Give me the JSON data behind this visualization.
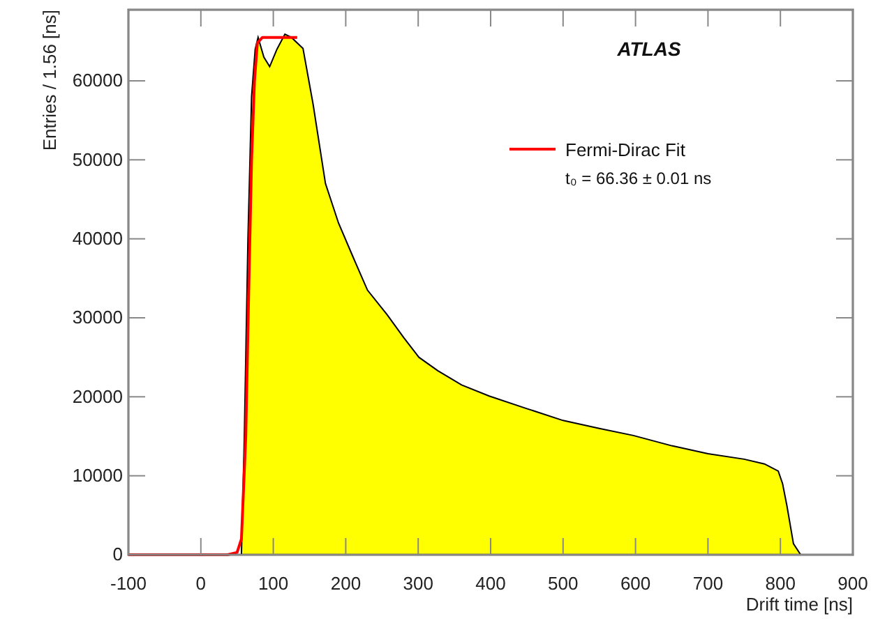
{
  "chart_data": {
    "type": "area",
    "xlabel": "Drift time [ns]",
    "ylabel": "Entries / 1.56 [ns]",
    "xlim": [
      -100,
      900
    ],
    "xticks": [
      -100,
      0,
      100,
      200,
      300,
      400,
      500,
      600,
      700,
      800,
      900
    ],
    "ylim": [
      0,
      69000
    ],
    "yticks": [
      0,
      10000,
      20000,
      30000,
      40000,
      50000,
      60000
    ],
    "legend": "top right",
    "annotations": [
      "ATLAS",
      "t₀ = 66.36 ± 0.01 ns"
    ],
    "series": [
      {
        "color": "#ffff00",
        "x": [
          50,
          56,
          60,
          65,
          70,
          75,
          79,
          87,
          95,
          105,
          116,
          125,
          141,
          155,
          172,
          190,
          211,
          230,
          257,
          280,
          301,
          327,
          360,
          398,
          450,
          500,
          550,
          597,
          650,
          700,
          750,
          778,
          797,
          803,
          809,
          818,
          828,
          900
        ],
        "values": [
          0,
          0,
          15000,
          40000,
          58000,
          64000,
          65500,
          63000,
          61800,
          64000,
          65900,
          65500,
          64100,
          57000,
          47000,
          42000,
          37500,
          33500,
          30400,
          27500,
          25000,
          23300,
          21500,
          20100,
          18500,
          17000,
          16000,
          15100,
          13800,
          12800,
          12100,
          11500,
          10600,
          9000,
          6200,
          1400,
          0,
          0
        ]
      },
      {
        "type": "line",
        "name": "Fermi-Dirac Fit",
        "color": "#ff0000",
        "x": [
          -100,
          37,
          50,
          56,
          62,
          66,
          70,
          74,
          78,
          85,
          133
        ],
        "values": [
          0,
          0,
          300,
          2000,
          15000,
          33000,
          50000,
          60000,
          64800,
          65500,
          65500
        ]
      }
    ]
  }
}
